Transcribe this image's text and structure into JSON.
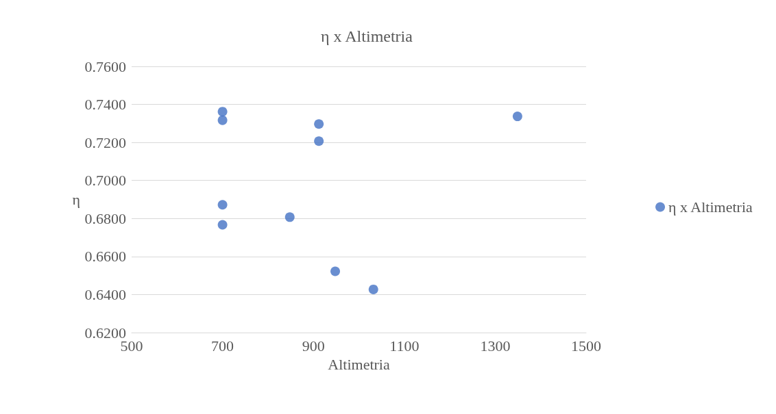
{
  "chart_data": {
    "type": "scatter",
    "title": "η x Altimetria",
    "xlabel": "Altimetria",
    "ylabel": "η",
    "x": [
      700,
      700,
      912,
      912,
      1349,
      700,
      700,
      848,
      948,
      1032
    ],
    "series": [
      {
        "name": "η x Altimetria",
        "color": "#4472c4",
        "values": [
          0.7362,
          0.7317,
          0.7297,
          0.7207,
          0.7337,
          0.6872,
          0.6767,
          0.6807,
          0.6522,
          0.6427
        ]
      }
    ],
    "xlim": [
      500,
      1500
    ],
    "xticks": [
      500,
      700,
      900,
      1100,
      1300,
      1500
    ],
    "ylim": [
      0.62,
      0.76
    ],
    "yticks": [
      {
        "value": 0.62,
        "label": "0.6200"
      },
      {
        "value": 0.64,
        "label": "0.6400"
      },
      {
        "value": 0.66,
        "label": "0.6600"
      },
      {
        "value": 0.68,
        "label": "0.6800"
      },
      {
        "value": 0.7,
        "label": "0.7000"
      },
      {
        "value": 0.72,
        "label": "0.7200"
      },
      {
        "value": 0.74,
        "label": "0.7400"
      },
      {
        "value": 0.76,
        "label": "0.7600"
      }
    ],
    "grid": "y",
    "legend": "right",
    "marker": "circle"
  }
}
